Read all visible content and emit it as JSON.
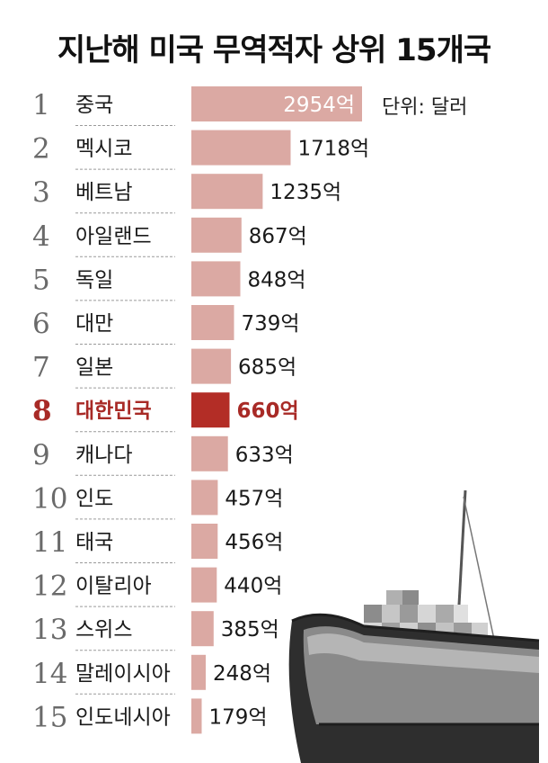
{
  "title": "지난해 미국 무역적자 상위 15개국",
  "unit_label": "단위: 달러",
  "colors": {
    "bar": "#dba9a3",
    "bar_highlight": "#b32d26",
    "highlight_text": "#a82a26",
    "value_inside": "#ffffff"
  },
  "icons": {
    "illustration": "cargo-ship-icon"
  },
  "chart_data": {
    "type": "bar",
    "orientation": "horizontal",
    "title": "지난해 미국 무역적자 상위 15개국",
    "unit": "단위: 달러",
    "highlight_index": 7,
    "categories": [
      "중국",
      "멕시코",
      "베트남",
      "아일랜드",
      "독일",
      "대만",
      "일본",
      "대한민국",
      "캐나다",
      "인도",
      "태국",
      "이탈리아",
      "스위스",
      "말레이시아",
      "인도네시아"
    ],
    "ranks": [
      "1",
      "2",
      "3",
      "4",
      "5",
      "6",
      "7",
      "8",
      "9",
      "10",
      "11",
      "12",
      "13",
      "14",
      "15"
    ],
    "values": [
      2954,
      1718,
      1235,
      867,
      848,
      739,
      685,
      660,
      633,
      457,
      456,
      440,
      385,
      248,
      179
    ],
    "value_labels": [
      "2954억",
      "1718억",
      "1235억",
      "867억",
      "848억",
      "739억",
      "685억",
      "660억",
      "633억",
      "457억",
      "456억",
      "440억",
      "385억",
      "248억",
      "179억"
    ],
    "xlim": [
      0,
      2954
    ],
    "grid": false,
    "legend": "none"
  }
}
